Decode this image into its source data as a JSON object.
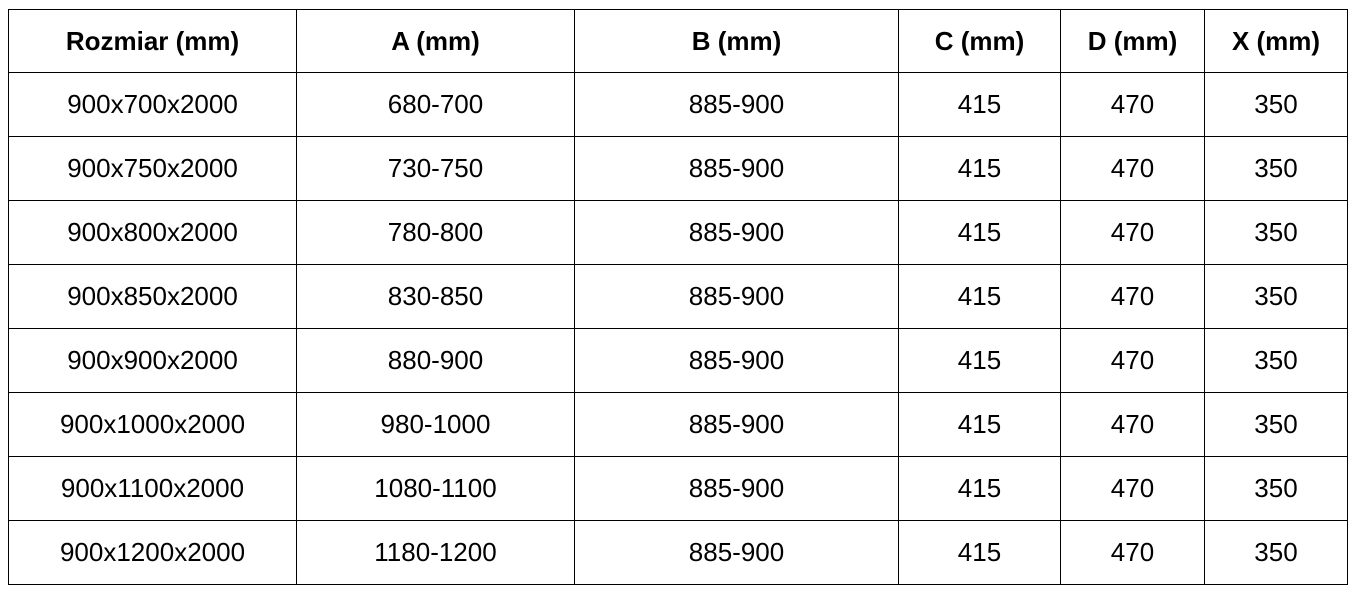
{
  "headers": [
    "Rozmiar (mm)",
    "A (mm)",
    "B (mm)",
    "C (mm)",
    "D (mm)",
    "X (mm)"
  ],
  "rows": [
    [
      "900x700x2000",
      "680-700",
      "885-900",
      "415",
      "470",
      "350"
    ],
    [
      "900x750x2000",
      "730-750",
      "885-900",
      "415",
      "470",
      "350"
    ],
    [
      "900x800x2000",
      "780-800",
      "885-900",
      "415",
      "470",
      "350"
    ],
    [
      "900x850x2000",
      "830-850",
      "885-900",
      "415",
      "470",
      "350"
    ],
    [
      "900x900x2000",
      "880-900",
      "885-900",
      "415",
      "470",
      "350"
    ],
    [
      "900x1000x2000",
      "980-1000",
      "885-900",
      "415",
      "470",
      "350"
    ],
    [
      "900x1100x2000",
      "1080-1100",
      "885-900",
      "415",
      "470",
      "350"
    ],
    [
      "900x1200x2000",
      "1180-1200",
      "885-900",
      "415",
      "470",
      "350"
    ]
  ]
}
